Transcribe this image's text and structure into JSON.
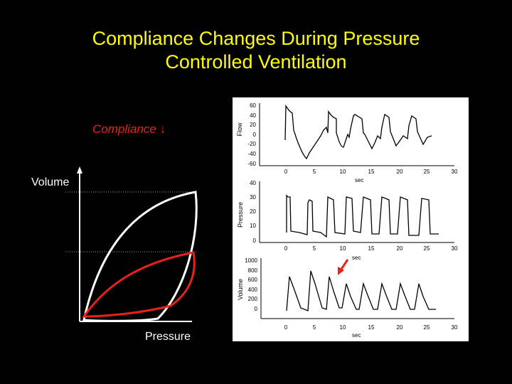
{
  "slide": {
    "title_line1": "Compliance Changes During Pressure",
    "title_line2": "Controlled Ventilation",
    "compliance_label": "Compliance ↓",
    "volume_label": "Volume",
    "pressure_label": "Pressure"
  },
  "colors": {
    "title": "#ffff00",
    "red": "#e8211b",
    "loop": "#ffffff",
    "background": "#000000"
  },
  "panel": {
    "flow": {
      "label": "Flow",
      "yticks": [
        "60",
        "40",
        "20",
        "0",
        "-20",
        "-40",
        "-60"
      ],
      "xticks": [
        "0",
        "5",
        "10",
        "15",
        "20",
        "25",
        "30"
      ],
      "xunit": "sec"
    },
    "pressure": {
      "label": "Pressure",
      "yticks": [
        "40",
        "30",
        "20",
        "10",
        "0"
      ],
      "xticks": [
        "0",
        "5",
        "10",
        "15",
        "20",
        "25",
        "30"
      ],
      "xunit": "sec"
    },
    "volume": {
      "label": "Volume",
      "yticks": [
        "1000",
        "800",
        "600",
        "400",
        "200",
        "0"
      ],
      "xticks": [
        "0",
        "5",
        "10",
        "15",
        "20",
        "25",
        "30"
      ],
      "xunit": "sec"
    }
  }
}
